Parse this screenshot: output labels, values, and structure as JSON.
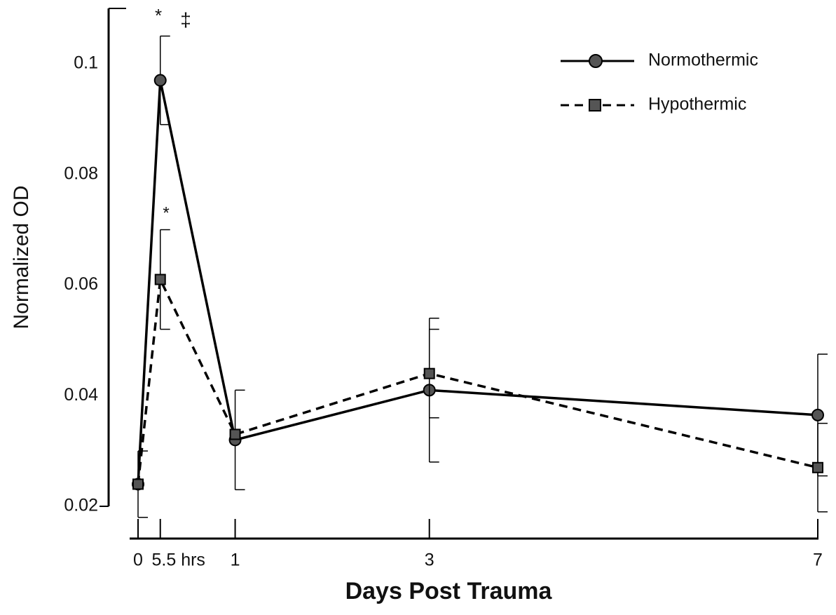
{
  "chart_data": {
    "type": "line",
    "xlabel": "Days Post Trauma",
    "ylabel": "Normalized OD",
    "x": [
      0,
      0.229,
      1,
      3,
      7
    ],
    "series": [
      {
        "name": "Normothermic",
        "color": "#000000",
        "dash": false,
        "marker": "circle",
        "values": [
          0.024,
          0.097,
          0.032,
          0.041,
          0.0365
        ],
        "errors": [
          0.006,
          0.008,
          0.009,
          0.013,
          0.011
        ]
      },
      {
        "name": "Hypothermic",
        "color": "#000000",
        "dash": true,
        "marker": "square",
        "values": [
          0.024,
          0.061,
          0.033,
          0.044,
          0.027
        ],
        "errors": [
          null,
          0.009,
          null,
          0.008,
          0.008
        ]
      }
    ],
    "xlim": [
      0,
      7
    ],
    "xticks": [
      0,
      {
        "value": 0.229,
        "label": "5.5 hrs"
      },
      1,
      3,
      7
    ],
    "ylim": [
      0.02,
      0.11
    ],
    "yticks": [
      0.02,
      0.04,
      0.06,
      0.08,
      0.1
    ],
    "annotations": [
      "*",
      "‡",
      "*"
    ],
    "legend": "upper right"
  }
}
